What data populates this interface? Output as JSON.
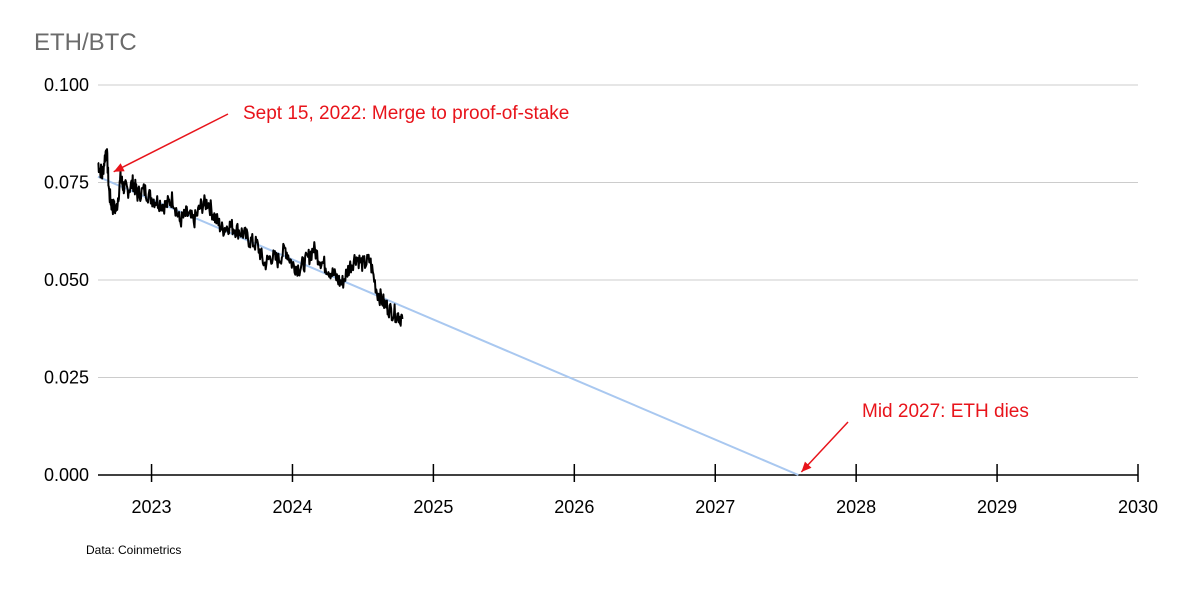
{
  "chart_data": {
    "type": "line",
    "title": "ETH/BTC",
    "source": "Data: Coinmetrics",
    "xlim": [
      2022.62,
      2030.0
    ],
    "ylim": [
      0,
      0.1
    ],
    "x_ticks": [
      2023,
      2024,
      2025,
      2026,
      2027,
      2028,
      2029,
      2030
    ],
    "x_tick_labels": [
      "2023",
      "2024",
      "2025",
      "2026",
      "2027",
      "2028",
      "2029",
      "2030"
    ],
    "y_ticks": [
      0,
      0.025,
      0.05,
      0.075,
      0.1
    ],
    "y_tick_labels": [
      "0.000",
      "0.025",
      "0.050",
      "0.075",
      "0.100"
    ],
    "grid": "horizontal",
    "colors": {
      "price": "#000000",
      "trend": "#a9c8f0",
      "annotation": "#e8141b",
      "grid": "#cccccc"
    },
    "series": [
      {
        "values_key": "eth_btc_price",
        "x": [
          2022.62,
          2022.65,
          2022.68,
          2022.7,
          2022.72,
          2022.75,
          2022.78,
          2022.8,
          2022.83,
          2022.87,
          2022.9,
          2022.95,
          2023.0,
          2023.05,
          2023.1,
          2023.15,
          2023.2,
          2023.25,
          2023.3,
          2023.35,
          2023.4,
          2023.45,
          2023.5,
          2023.55,
          2023.6,
          2023.65,
          2023.7,
          2023.75,
          2023.8,
          2023.85,
          2023.9,
          2023.95,
          2024.0,
          2024.05,
          2024.1,
          2024.15,
          2024.2,
          2024.25,
          2024.3,
          2024.35,
          2024.4,
          2024.45,
          2024.5,
          2024.55,
          2024.6,
          2024.65,
          2024.7,
          2024.75,
          2024.78
        ],
        "y": [
          0.08,
          0.077,
          0.084,
          0.072,
          0.069,
          0.068,
          0.076,
          0.074,
          0.073,
          0.075,
          0.072,
          0.073,
          0.071,
          0.07,
          0.069,
          0.071,
          0.065,
          0.067,
          0.065,
          0.069,
          0.07,
          0.066,
          0.063,
          0.064,
          0.063,
          0.062,
          0.06,
          0.059,
          0.054,
          0.056,
          0.055,
          0.058,
          0.054,
          0.053,
          0.055,
          0.058,
          0.055,
          0.053,
          0.051,
          0.049,
          0.053,
          0.056,
          0.054,
          0.055,
          0.047,
          0.044,
          0.042,
          0.041,
          0.04
        ]
      },
      {
        "values_key": "linear_trend",
        "x": [
          2022.62,
          2027.59
        ],
        "y": [
          0.0765,
          0.0
        ]
      }
    ],
    "annotations": [
      {
        "text": "Sept 15, 2022: Merge to proof-of-stake",
        "target": {
          "x": 2022.71,
          "y": 0.0775
        }
      },
      {
        "text": "Mid 2027: ETH dies",
        "target": {
          "x": 2027.59,
          "y": 0.0
        }
      }
    ]
  }
}
